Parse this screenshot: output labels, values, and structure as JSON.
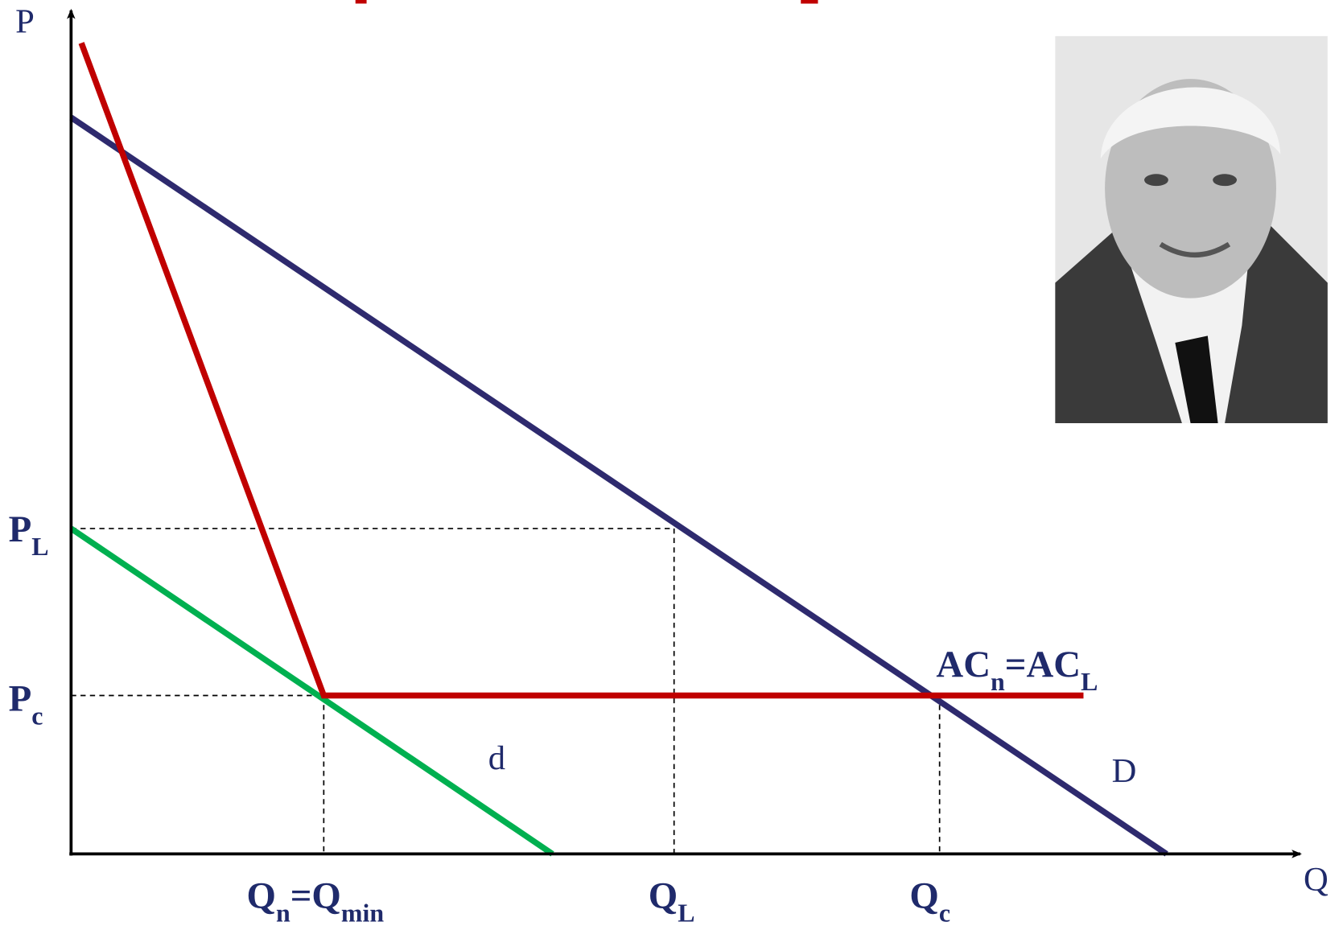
{
  "axes": {
    "y": "P",
    "x": "Q"
  },
  "price_labels": {
    "p_l": [
      "P",
      "L"
    ],
    "p_c": [
      "P",
      "c"
    ]
  },
  "quantity_labels": {
    "q_n": [
      "Q",
      "n",
      "=Q",
      "min"
    ],
    "q_l": [
      "Q",
      "L"
    ],
    "q_c": [
      "Q",
      "c"
    ]
  },
  "curve_labels": {
    "ac": [
      "AC",
      "n",
      "=AC",
      "L"
    ],
    "d": "d",
    "demand": "D"
  }
}
